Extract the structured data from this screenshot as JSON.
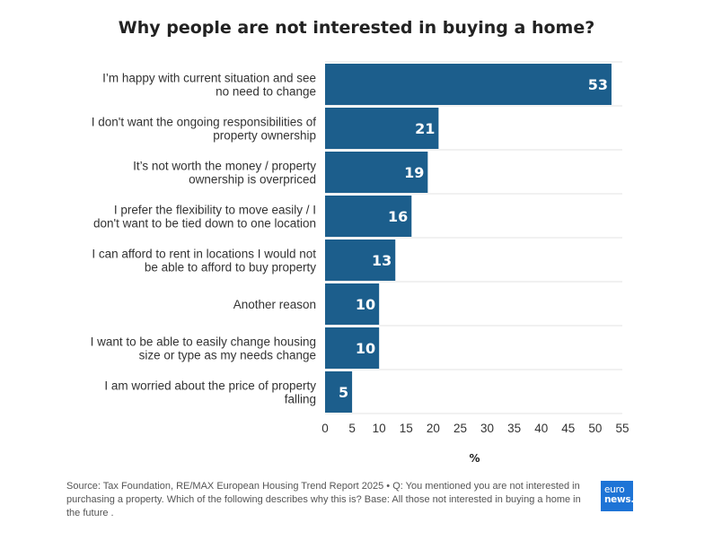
{
  "chart_data": {
    "type": "bar",
    "orientation": "horizontal",
    "title": "Why people are not interested in buying a home?",
    "xlabel": "%",
    "xlim": [
      0,
      55
    ],
    "xticks": [
      "0",
      "5",
      "10",
      "15",
      "20",
      "25",
      "30",
      "35",
      "40",
      "45",
      "50",
      "55"
    ],
    "categories": [
      [
        "I’m happy with current situation and see",
        "no need to change"
      ],
      [
        "I don't want the ongoing responsibilities of",
        "property ownership"
      ],
      [
        "It’s not worth the money / property",
        "ownership is overpriced"
      ],
      [
        "I prefer the flexibility to move easily / I",
        "don't want to be tied down to one location"
      ],
      [
        "I can afford to rent in locations I would not",
        "be able to afford to buy property"
      ],
      [
        "Another reason"
      ],
      [
        "I want to be able to easily change housing",
        "size or type as my needs change"
      ],
      [
        "I am worried about the price of property",
        "falling"
      ]
    ],
    "values": [
      53,
      21,
      19,
      16,
      13,
      10,
      10,
      5
    ],
    "bar_color": "#1c5e8c",
    "grid": true
  },
  "footer": {
    "source": "Source: Tax Foundation, RE/MAX European Housing Trend Report 2025 • Q: You mentioned you are not interested in purchasing a property. Which of the following describes why this is? Base: All those not interested in buying a home in the future ."
  },
  "logo": {
    "line1": "euro",
    "line2": "news."
  }
}
